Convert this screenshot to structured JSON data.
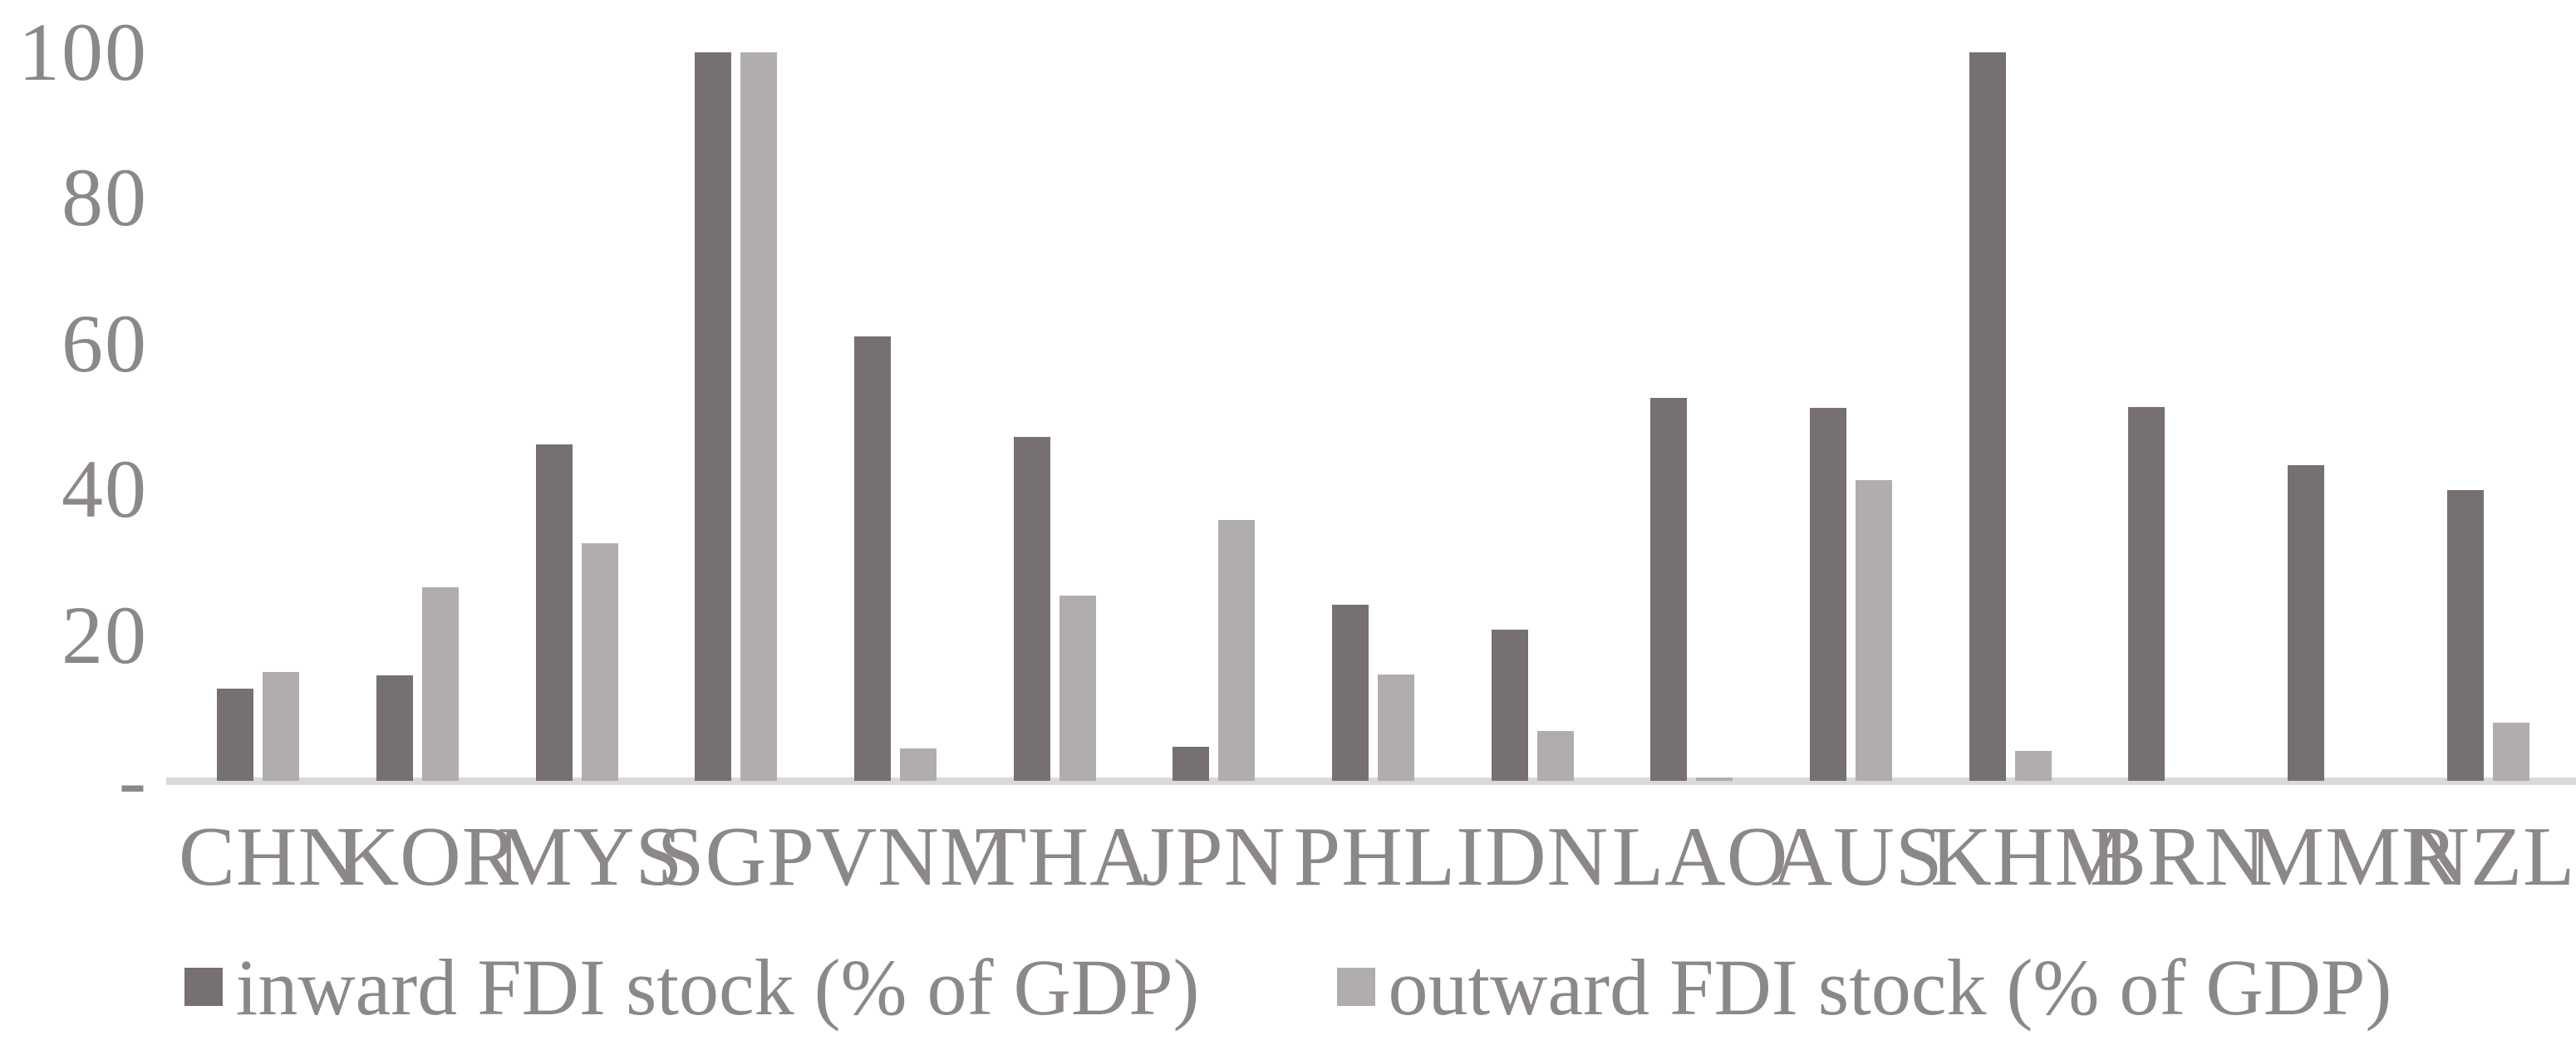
{
  "chart_data": {
    "type": "bar",
    "title": "",
    "categories": [
      "CHN",
      "KOR",
      "MYS",
      "SGP",
      "VNM",
      "THA",
      "JPN",
      "PHL",
      "IDN",
      "LAO",
      "AUS",
      "KHM",
      "BRN",
      "MMR",
      "NZL"
    ],
    "series": [
      {
        "name": "inward FDI stock (% of GDP)",
        "color": "#767071",
        "values": [
          12.6,
          14.5,
          46.2,
          100,
          61,
          47.2,
          4.7,
          24.2,
          20.7,
          52.6,
          51.2,
          100,
          51.3,
          43.3,
          39.9
        ]
      },
      {
        "name": "outward FDI stock (% of GDP)",
        "color": "#b2adad",
        "values": [
          14.9,
          26.6,
          32.6,
          100,
          4.4,
          25.4,
          35.8,
          14.6,
          6.8,
          0.5,
          41.3,
          4.1,
          0,
          0,
          8.0
        ]
      }
    ],
    "xlabel": "",
    "ylabel": "",
    "ylim": [
      0,
      100
    ],
    "y_ticks": [
      {
        "label": "100",
        "value": 100
      },
      {
        "label": "80",
        "value": 80
      },
      {
        "label": "60",
        "value": 60
      },
      {
        "label": "40",
        "value": 40
      },
      {
        "label": "20",
        "value": 20
      },
      {
        "label": "-",
        "value": 0
      }
    ],
    "grid": false,
    "legend_position": "bottom"
  },
  "colors": {
    "background": "#ffffff",
    "axis_line": "#d9d9d9",
    "label_text": "#8c8888",
    "series_inward": "#767071",
    "series_outward": "#b2adad"
  }
}
